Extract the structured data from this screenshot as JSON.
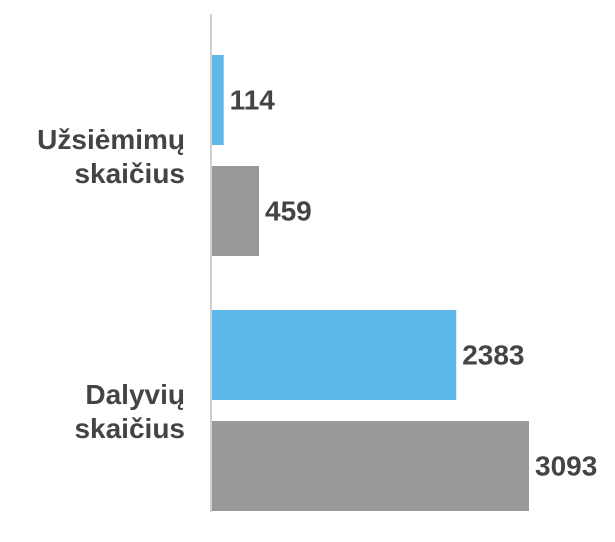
{
  "chart_data": {
    "type": "hbar",
    "categories": [
      "Užsiėmimų skaičius",
      "Dalyvių skaičius"
    ],
    "series": [
      {
        "color": "#5db7e8",
        "values": [
          114,
          2383
        ]
      },
      {
        "color": "#999999",
        "values": [
          459,
          3093
        ]
      }
    ]
  }
}
